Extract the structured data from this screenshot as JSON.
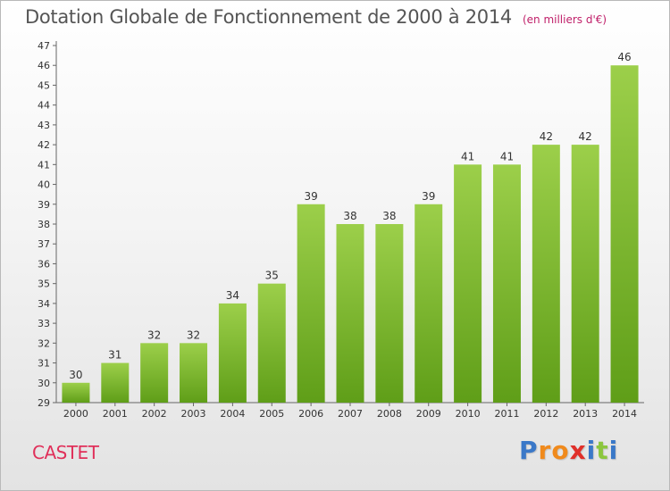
{
  "chart_data": {
    "type": "bar",
    "title": "Dotation Globale de Fonctionnement de 2000 à 2014",
    "subtitle": "(en milliers d'€)",
    "categories": [
      "2000",
      "2001",
      "2002",
      "2003",
      "2004",
      "2005",
      "2006",
      "2007",
      "2008",
      "2009",
      "2010",
      "2011",
      "2012",
      "2013",
      "2014"
    ],
    "values": [
      30,
      31,
      32,
      32,
      34,
      35,
      39,
      38,
      38,
      39,
      41,
      41,
      42,
      42,
      46
    ],
    "ylim": [
      29,
      47
    ],
    "yticks": [
      29,
      30,
      31,
      32,
      33,
      34,
      35,
      36,
      37,
      38,
      39,
      40,
      41,
      42,
      43,
      44,
      45,
      46,
      47
    ],
    "grid": false,
    "bar_color_top": "#9ccf4a",
    "bar_color_bottom": "#5f9e18"
  },
  "footer": {
    "town": "CASTET",
    "logo_letters": [
      "P",
      "r",
      "o",
      "x",
      "i",
      "t",
      "i"
    ],
    "logo_colors": [
      "#3a78c8",
      "#f08a1c",
      "#f08a1c",
      "#e0302a",
      "#3a78c8",
      "#8cc63e",
      "#3a78c8"
    ]
  }
}
